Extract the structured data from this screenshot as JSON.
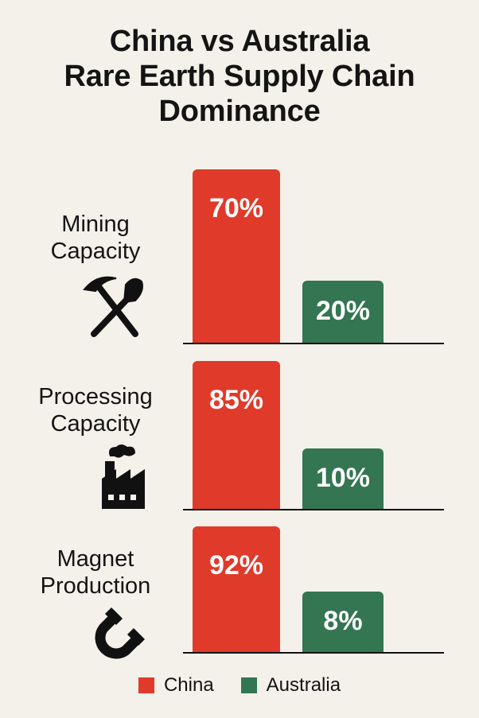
{
  "chart_data": {
    "type": "bar",
    "title_lines": [
      "China vs Australia",
      "Rare Earth Supply Chain",
      "Dominance"
    ],
    "categories": [
      {
        "label_lines": [
          "Mining",
          "Capacity"
        ],
        "icon": "pickaxe-shovel-icon"
      },
      {
        "label_lines": [
          "Processing",
          "Capacity"
        ],
        "icon": "factory-icon"
      },
      {
        "label_lines": [
          "Magnet",
          "Production"
        ],
        "icon": "horseshoe-magnet-icon"
      }
    ],
    "series": [
      {
        "name": "China",
        "color": "#e03a2a",
        "values": [
          70,
          85,
          92
        ],
        "labels": [
          "70%",
          "85%",
          "92%"
        ]
      },
      {
        "name": "Australia",
        "color": "#347552",
        "values": [
          20,
          10,
          8
        ],
        "labels": [
          "20%",
          "10%",
          "8%"
        ]
      }
    ],
    "unit": "%",
    "legend_position": "bottom"
  }
}
